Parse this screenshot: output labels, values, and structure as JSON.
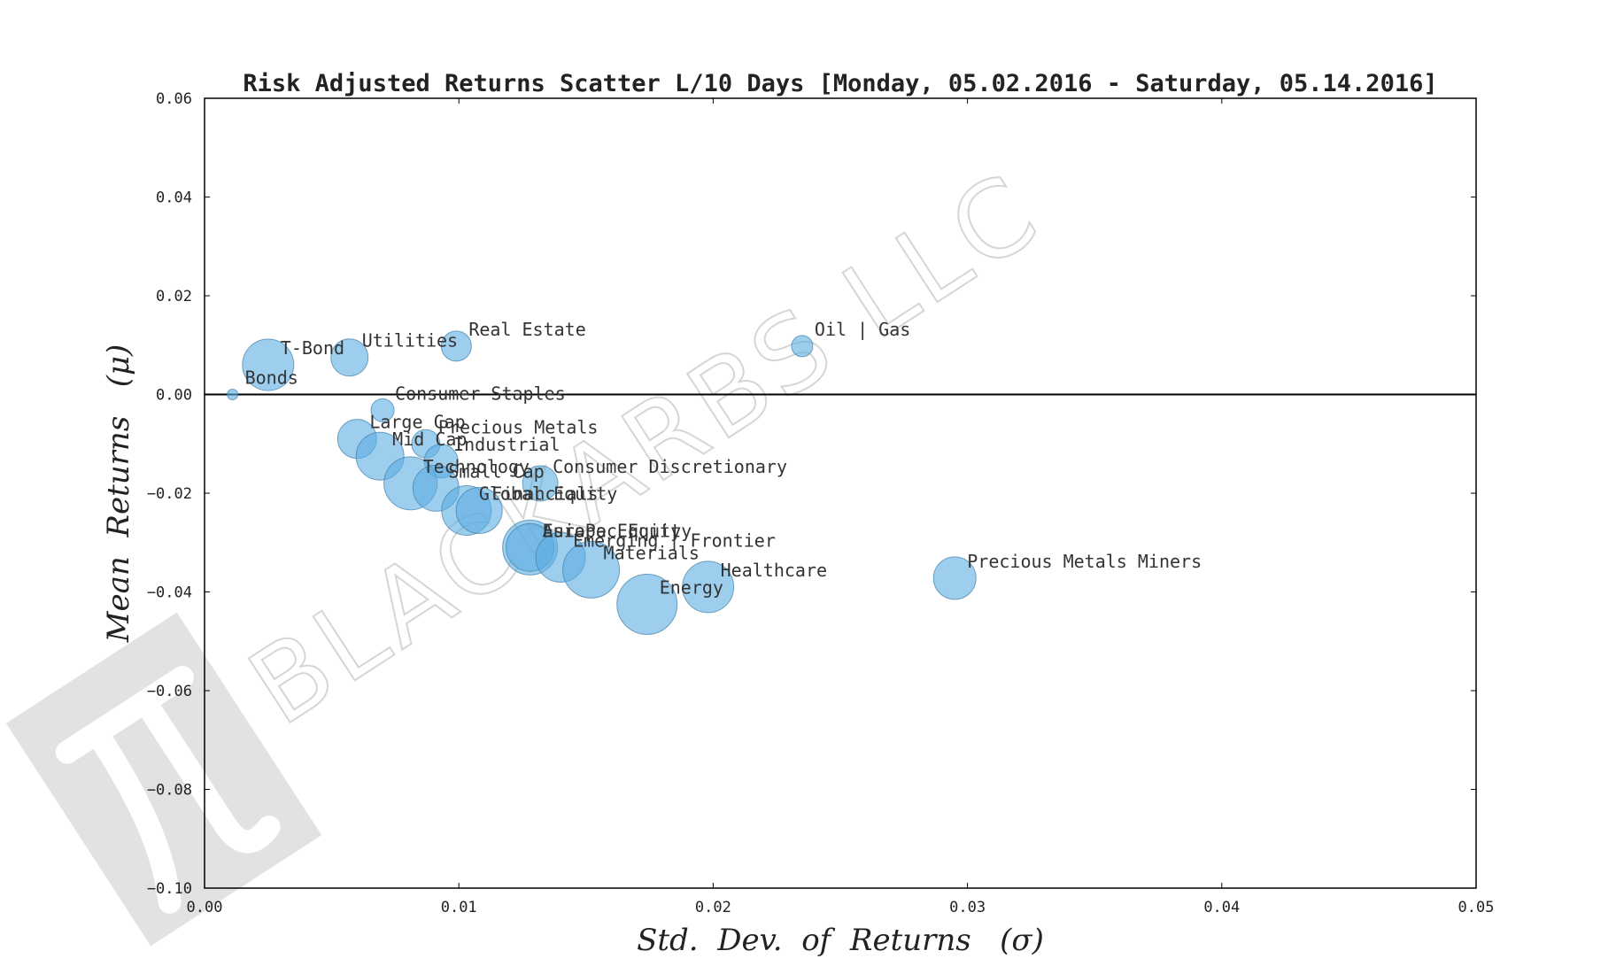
{
  "colors": {
    "bubble_fill": "#5dade2",
    "bubble_stroke": "#3f7fa8",
    "axis": "#000000",
    "watermark": "#dcdcdc"
  },
  "watermark": {
    "text": "BLACKARBS LLC",
    "icon": "pi-logo-icon"
  },
  "chart_data": {
    "type": "scatter",
    "title": "Risk Adjusted Returns Scatter L/10 Days [Monday, 05.02.2016 - Saturday, 05.14.2016]",
    "xlabel": "Std.  Dev.  of  Returns   (σ)",
    "ylabel": "Mean  Returns   (μ)",
    "xlim": [
      0.0,
      0.05
    ],
    "ylim": [
      -0.1,
      0.06
    ],
    "xticks": [
      0.0,
      0.01,
      0.02,
      0.03,
      0.04,
      0.05
    ],
    "xtick_labels": [
      "0.00",
      "0.01",
      "0.02",
      "0.03",
      "0.04",
      "0.05"
    ],
    "yticks": [
      -0.1,
      -0.08,
      -0.06,
      -0.04,
      -0.02,
      0.0,
      0.02,
      0.04,
      0.06
    ],
    "ytick_labels": [
      "−0.10",
      "−0.08",
      "−0.06",
      "−0.04",
      "−0.02",
      "0.00",
      "0.02",
      "0.04",
      "0.06"
    ],
    "hline": 0.0,
    "grid": false,
    "points": [
      {
        "label": "Bonds",
        "x": 0.0011,
        "y": 0.0,
        "size": 6
      },
      {
        "label": "T-Bond",
        "x": 0.0025,
        "y": 0.006,
        "size": 29
      },
      {
        "label": "Utilities",
        "x": 0.0057,
        "y": 0.0075,
        "size": 21
      },
      {
        "label": "Real Estate",
        "x": 0.0099,
        "y": 0.0098,
        "size": 17
      },
      {
        "label": "Oil | Gas",
        "x": 0.0235,
        "y": 0.0098,
        "size": 12
      },
      {
        "label": "Consumer Staples",
        "x": 0.007,
        "y": -0.0032,
        "size": 13
      },
      {
        "label": "Large Cap",
        "x": 0.006,
        "y": -0.009,
        "size": 22
      },
      {
        "label": "Precious Metals",
        "x": 0.0087,
        "y": -0.01,
        "size": 16
      },
      {
        "label": "Mid Cap",
        "x": 0.0069,
        "y": -0.0125,
        "size": 27
      },
      {
        "label": "Industrial",
        "x": 0.0093,
        "y": -0.0135,
        "size": 19
      },
      {
        "label": "Technology",
        "x": 0.0081,
        "y": -0.018,
        "size": 30
      },
      {
        "label": "Small Cap",
        "x": 0.0091,
        "y": -0.019,
        "size": 26
      },
      {
        "label": "Consumer Discretionary",
        "x": 0.0132,
        "y": -0.018,
        "size": 20
      },
      {
        "label": "Global Equity",
        "x": 0.0103,
        "y": -0.0235,
        "size": 28
      },
      {
        "label": "Financials",
        "x": 0.0108,
        "y": -0.0235,
        "size": 26
      },
      {
        "label": "AsiaPac Equity",
        "x": 0.0128,
        "y": -0.031,
        "size": 31
      },
      {
        "label": "Europe Equity",
        "x": 0.0128,
        "y": -0.031,
        "size": 27
      },
      {
        "label": "Emerging | Frontier",
        "x": 0.014,
        "y": -0.033,
        "size": 28
      },
      {
        "label": "Materials",
        "x": 0.0152,
        "y": -0.0355,
        "size": 32
      },
      {
        "label": "Energy",
        "x": 0.0174,
        "y": -0.0425,
        "size": 34
      },
      {
        "label": "Healthcare",
        "x": 0.0198,
        "y": -0.039,
        "size": 29
      },
      {
        "label": "Precious Metals Miners",
        "x": 0.0295,
        "y": -0.0372,
        "size": 24
      }
    ]
  }
}
